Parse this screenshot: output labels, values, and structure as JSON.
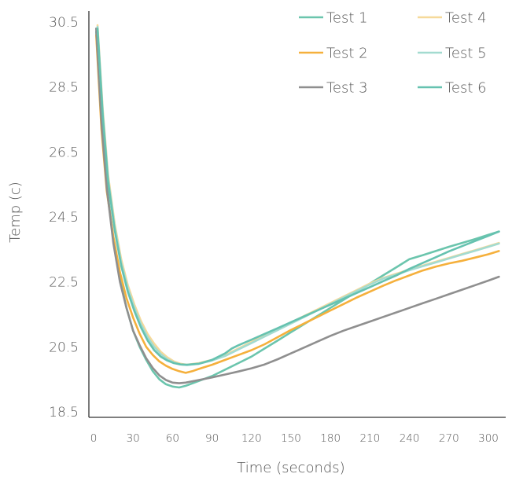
{
  "chart_data": {
    "type": "line",
    "xlabel": "Time (seconds)",
    "ylabel": "Temp (c)",
    "xlim": [
      0,
      310
    ],
    "ylim": [
      18.5,
      30.5
    ],
    "xticks": [
      "0",
      "30",
      "60",
      "90",
      "120",
      "150",
      "180",
      "210",
      "240",
      "270",
      "300"
    ],
    "yticks": [
      "18.5",
      "20.5",
      "22.5",
      "24.5",
      "26.5",
      "28.5",
      "30.5"
    ],
    "grid": false,
    "legend_position": "top-right",
    "series": [
      {
        "name": "Test 1",
        "color": "#6bc5ad",
        "points": [
          [
            2,
            30.2
          ],
          [
            6,
            27.5
          ],
          [
            10,
            25.5
          ],
          [
            15,
            23.8
          ],
          [
            20,
            22.6
          ],
          [
            25,
            21.7
          ],
          [
            30,
            21.0
          ],
          [
            35,
            20.5
          ],
          [
            40,
            20.1
          ],
          [
            45,
            19.75
          ],
          [
            50,
            19.5
          ],
          [
            55,
            19.35
          ],
          [
            60,
            19.28
          ],
          [
            65,
            19.25
          ],
          [
            70,
            19.3
          ],
          [
            80,
            19.45
          ],
          [
            90,
            19.6
          ],
          [
            100,
            19.8
          ],
          [
            110,
            20.0
          ],
          [
            120,
            20.2
          ],
          [
            130,
            20.45
          ],
          [
            140,
            20.7
          ],
          [
            150,
            20.95
          ],
          [
            160,
            21.2
          ],
          [
            170,
            21.45
          ],
          [
            180,
            21.7
          ],
          [
            190,
            21.95
          ],
          [
            200,
            22.2
          ],
          [
            210,
            22.45
          ],
          [
            220,
            22.7
          ],
          [
            230,
            22.95
          ],
          [
            240,
            23.2
          ],
          [
            250,
            23.32
          ],
          [
            260,
            23.45
          ],
          [
            270,
            23.58
          ],
          [
            280,
            23.7
          ],
          [
            290,
            23.82
          ],
          [
            300,
            23.95
          ],
          [
            308,
            24.05
          ]
        ]
      },
      {
        "name": "Test 2",
        "color": "#f5b03c",
        "points": [
          [
            2,
            30.1
          ],
          [
            6,
            27.2
          ],
          [
            10,
            25.3
          ],
          [
            15,
            23.9
          ],
          [
            20,
            22.8
          ],
          [
            25,
            22.0
          ],
          [
            30,
            21.4
          ],
          [
            35,
            20.9
          ],
          [
            40,
            20.5
          ],
          [
            45,
            20.25
          ],
          [
            50,
            20.05
          ],
          [
            55,
            19.92
          ],
          [
            60,
            19.82
          ],
          [
            65,
            19.75
          ],
          [
            70,
            19.7
          ],
          [
            75,
            19.75
          ],
          [
            80,
            19.82
          ],
          [
            90,
            19.95
          ],
          [
            100,
            20.1
          ],
          [
            110,
            20.25
          ],
          [
            120,
            20.4
          ],
          [
            130,
            20.58
          ],
          [
            140,
            20.8
          ],
          [
            150,
            21.02
          ],
          [
            160,
            21.22
          ],
          [
            170,
            21.42
          ],
          [
            180,
            21.62
          ],
          [
            190,
            21.82
          ],
          [
            200,
            22.02
          ],
          [
            210,
            22.2
          ],
          [
            220,
            22.38
          ],
          [
            230,
            22.55
          ],
          [
            240,
            22.7
          ],
          [
            250,
            22.85
          ],
          [
            260,
            22.97
          ],
          [
            270,
            23.07
          ],
          [
            280,
            23.15
          ],
          [
            290,
            23.25
          ],
          [
            300,
            23.35
          ],
          [
            308,
            23.45
          ]
        ]
      },
      {
        "name": "Test 3",
        "color": "#8f8f8f",
        "points": [
          [
            2,
            30.3
          ],
          [
            6,
            27.4
          ],
          [
            10,
            25.4
          ],
          [
            15,
            23.7
          ],
          [
            20,
            22.5
          ],
          [
            25,
            21.7
          ],
          [
            30,
            21.0
          ],
          [
            35,
            20.55
          ],
          [
            40,
            20.15
          ],
          [
            45,
            19.85
          ],
          [
            50,
            19.62
          ],
          [
            55,
            19.48
          ],
          [
            60,
            19.4
          ],
          [
            65,
            19.38
          ],
          [
            70,
            19.4
          ],
          [
            80,
            19.48
          ],
          [
            90,
            19.56
          ],
          [
            100,
            19.65
          ],
          [
            110,
            19.74
          ],
          [
            120,
            19.84
          ],
          [
            130,
            19.96
          ],
          [
            140,
            20.12
          ],
          [
            150,
            20.3
          ],
          [
            160,
            20.48
          ],
          [
            170,
            20.66
          ],
          [
            180,
            20.84
          ],
          [
            190,
            21.0
          ],
          [
            200,
            21.14
          ],
          [
            210,
            21.28
          ],
          [
            220,
            21.42
          ],
          [
            230,
            21.56
          ],
          [
            240,
            21.7
          ],
          [
            250,
            21.84
          ],
          [
            260,
            21.98
          ],
          [
            270,
            22.12
          ],
          [
            280,
            22.26
          ],
          [
            290,
            22.4
          ],
          [
            300,
            22.54
          ],
          [
            308,
            22.66
          ]
        ]
      },
      {
        "name": "Test 4",
        "color": "#f6d99a",
        "points": [
          [
            3,
            30.4
          ],
          [
            7,
            27.8
          ],
          [
            11,
            25.8
          ],
          [
            16,
            24.3
          ],
          [
            21,
            23.2
          ],
          [
            26,
            22.4
          ],
          [
            31,
            21.8
          ],
          [
            36,
            21.3
          ],
          [
            41,
            20.9
          ],
          [
            46,
            20.6
          ],
          [
            51,
            20.35
          ],
          [
            56,
            20.18
          ],
          [
            61,
            20.05
          ],
          [
            66,
            19.98
          ],
          [
            71,
            19.95
          ],
          [
            80,
            20.0
          ],
          [
            90,
            20.1
          ],
          [
            100,
            20.25
          ],
          [
            110,
            20.45
          ],
          [
            120,
            20.65
          ],
          [
            130,
            20.85
          ],
          [
            140,
            21.05
          ],
          [
            150,
            21.25
          ],
          [
            160,
            21.45
          ],
          [
            170,
            21.65
          ],
          [
            180,
            21.85
          ],
          [
            190,
            22.05
          ],
          [
            200,
            22.25
          ],
          [
            210,
            22.45
          ],
          [
            220,
            22.62
          ],
          [
            230,
            22.75
          ],
          [
            240,
            22.88
          ],
          [
            250,
            23.0
          ],
          [
            260,
            23.12
          ],
          [
            270,
            23.24
          ],
          [
            280,
            23.36
          ],
          [
            290,
            23.48
          ],
          [
            300,
            23.6
          ],
          [
            308,
            23.7
          ]
        ]
      },
      {
        "name": "Test 5",
        "color": "#a3dbd0",
        "points": [
          [
            3,
            30.35
          ],
          [
            7,
            27.7
          ],
          [
            11,
            25.7
          ],
          [
            16,
            24.2
          ],
          [
            21,
            23.1
          ],
          [
            26,
            22.3
          ],
          [
            31,
            21.7
          ],
          [
            36,
            21.2
          ],
          [
            41,
            20.8
          ],
          [
            46,
            20.5
          ],
          [
            51,
            20.28
          ],
          [
            56,
            20.12
          ],
          [
            61,
            20.02
          ],
          [
            66,
            19.96
          ],
          [
            71,
            19.94
          ],
          [
            80,
            19.98
          ],
          [
            90,
            20.08
          ],
          [
            100,
            20.22
          ],
          [
            110,
            20.42
          ],
          [
            120,
            20.62
          ],
          [
            130,
            20.82
          ],
          [
            140,
            21.02
          ],
          [
            150,
            21.22
          ],
          [
            160,
            21.42
          ],
          [
            170,
            21.62
          ],
          [
            180,
            21.82
          ],
          [
            190,
            22.02
          ],
          [
            200,
            22.22
          ],
          [
            210,
            22.42
          ],
          [
            220,
            22.6
          ],
          [
            230,
            22.73
          ],
          [
            240,
            22.86
          ],
          [
            250,
            22.98
          ],
          [
            260,
            23.1
          ],
          [
            270,
            23.22
          ],
          [
            280,
            23.34
          ],
          [
            290,
            23.46
          ],
          [
            300,
            23.58
          ],
          [
            308,
            23.68
          ]
        ]
      },
      {
        "name": "Test 6",
        "color": "#66c2b0",
        "points": [
          [
            3,
            30.3
          ],
          [
            7,
            27.6
          ],
          [
            11,
            25.6
          ],
          [
            16,
            24.1
          ],
          [
            21,
            23.0
          ],
          [
            26,
            22.2
          ],
          [
            31,
            21.6
          ],
          [
            36,
            21.1
          ],
          [
            41,
            20.7
          ],
          [
            46,
            20.4
          ],
          [
            51,
            20.2
          ],
          [
            56,
            20.08
          ],
          [
            61,
            20.0
          ],
          [
            66,
            19.96
          ],
          [
            71,
            19.95
          ],
          [
            80,
            19.98
          ],
          [
            90,
            20.1
          ],
          [
            100,
            20.3
          ],
          [
            105,
            20.45
          ],
          [
            110,
            20.55
          ],
          [
            120,
            20.72
          ],
          [
            130,
            20.9
          ],
          [
            140,
            21.08
          ],
          [
            150,
            21.26
          ],
          [
            160,
            21.44
          ],
          [
            170,
            21.62
          ],
          [
            180,
            21.8
          ],
          [
            190,
            21.98
          ],
          [
            200,
            22.16
          ],
          [
            210,
            22.34
          ],
          [
            220,
            22.52
          ],
          [
            230,
            22.7
          ],
          [
            240,
            22.9
          ],
          [
            250,
            23.08
          ],
          [
            260,
            23.26
          ],
          [
            270,
            23.44
          ],
          [
            280,
            23.6
          ],
          [
            290,
            23.76
          ],
          [
            300,
            23.92
          ],
          [
            308,
            24.05
          ]
        ]
      }
    ]
  }
}
